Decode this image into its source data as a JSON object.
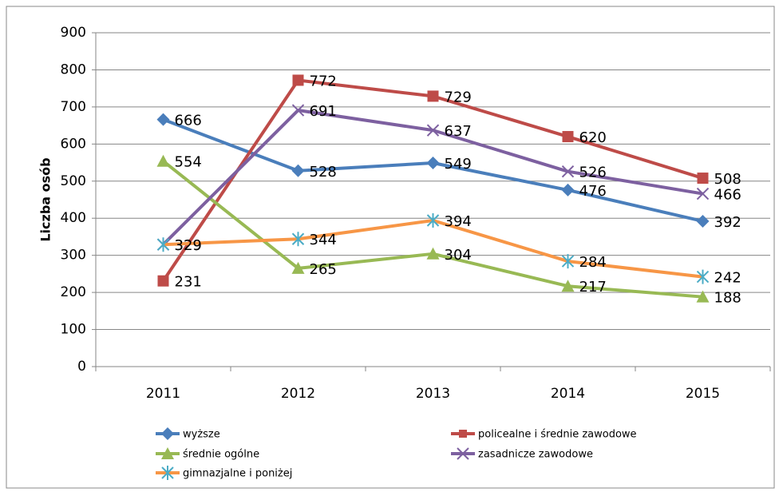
{
  "chart_data": {
    "type": "line",
    "y_label": "Liczba osób",
    "categories": [
      "2011",
      "2012",
      "2013",
      "2014",
      "2015"
    ],
    "series": [
      {
        "name": "wyższe",
        "color": "#4a7ebb",
        "marker": "diamond",
        "values": [
          666,
          528,
          549,
          476,
          392
        ]
      },
      {
        "name": "policealne i średnie zawodowe",
        "color": "#be4b48",
        "marker": "square",
        "values": [
          231,
          772,
          729,
          620,
          508
        ]
      },
      {
        "name": "średnie ogólne",
        "color": "#98b954",
        "marker": "triangle",
        "values": [
          554,
          265,
          304,
          217,
          188
        ]
      },
      {
        "name": "zasadnicze zawodowe",
        "color": "#7d60a0",
        "marker": "x",
        "values": [
          329,
          691,
          637,
          526,
          466
        ]
      },
      {
        "name": "gimnazjalne i poniżej",
        "color": "#f79646",
        "marker": "star",
        "values": [
          329,
          344,
          394,
          284,
          242
        ]
      }
    ],
    "ylim": [
      0,
      900
    ],
    "yticks": [
      0,
      100,
      200,
      300,
      400,
      500,
      600,
      700,
      800,
      900
    ],
    "grid": true,
    "legend": "bottom"
  }
}
